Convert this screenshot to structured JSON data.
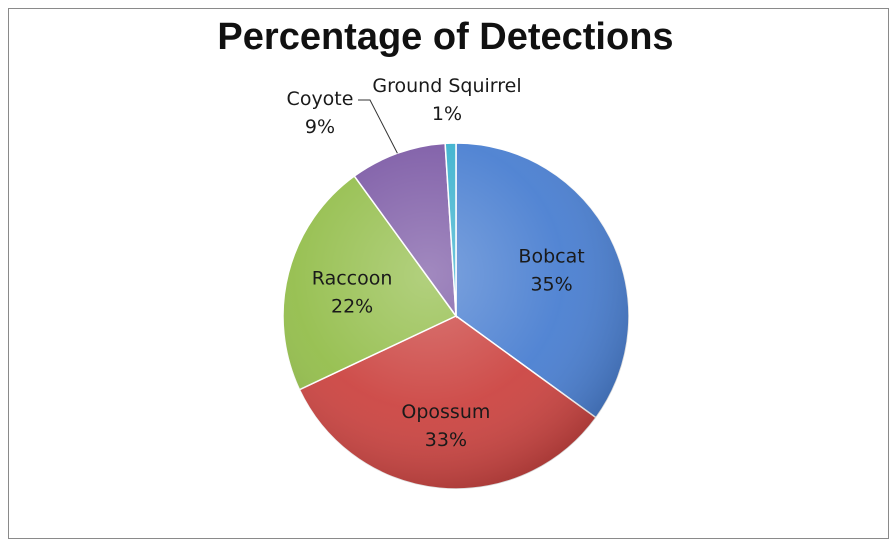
{
  "chart_data": {
    "type": "pie",
    "title": "Percentage of Detections",
    "slices": [
      {
        "label": "Bobcat",
        "value": 35,
        "display": "35%",
        "color": "#4a7fd1"
      },
      {
        "label": "Opossum",
        "value": 33,
        "display": "33%",
        "color": "#cc4542"
      },
      {
        "label": "Raccoon",
        "value": 22,
        "display": "22%",
        "color": "#94be4c"
      },
      {
        "label": "Coyote",
        "value": 9,
        "display": "9%",
        "color": "#7d5ba6"
      },
      {
        "label": "Ground Squirrel",
        "value": 1,
        "display": "1%",
        "color": "#3cb2ce"
      }
    ]
  }
}
